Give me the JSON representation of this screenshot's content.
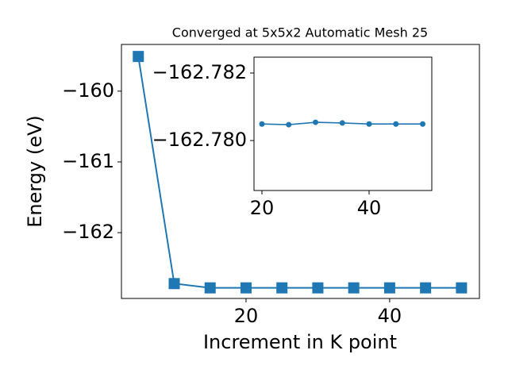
{
  "chart_data": [
    {
      "type": "line",
      "title": "Converged at 5x5x2 Automatic Mesh 25",
      "x_label": "Increment in K point",
      "y_label": "Energy (eV)",
      "x": [
        5,
        10,
        15,
        20,
        25,
        30,
        35,
        40,
        45,
        50
      ],
      "series": [
        {
          "color": "#1f77b4",
          "marker": "square",
          "values": [
            -159.51,
            -162.72,
            -162.7805,
            -162.78049,
            -162.78047,
            -162.78054,
            -162.78052,
            -162.78049,
            -162.78049,
            -162.78049
          ]
        }
      ],
      "xlim": [
        2.65,
        52.5
      ],
      "ylim": [
        -162.93,
        -159.34
      ],
      "xticks": [
        20,
        40
      ],
      "yticks": [
        {
          "value": -162,
          "label": "−162"
        },
        {
          "value": -161,
          "label": "−161"
        },
        {
          "value": -160,
          "label": "−160"
        }
      ]
    },
    {
      "type": "line",
      "x": [
        20,
        25,
        30,
        35,
        40,
        45,
        50
      ],
      "series": [
        {
          "color": "#1f77b4",
          "marker": "circle",
          "values": [
            -162.78049,
            -162.78047,
            -162.78054,
            -162.78052,
            -162.78049,
            -162.78049,
            -162.78049
          ]
        }
      ],
      "xlim": [
        18.52,
        51.7
      ],
      "ylim": [
        -162.77852,
        -162.78247
      ],
      "xticks": [
        20,
        40
      ],
      "yticks": [
        {
          "value": -162.78,
          "label": "−162.780"
        },
        {
          "value": -162.782,
          "label": "−162.782"
        }
      ]
    }
  ]
}
